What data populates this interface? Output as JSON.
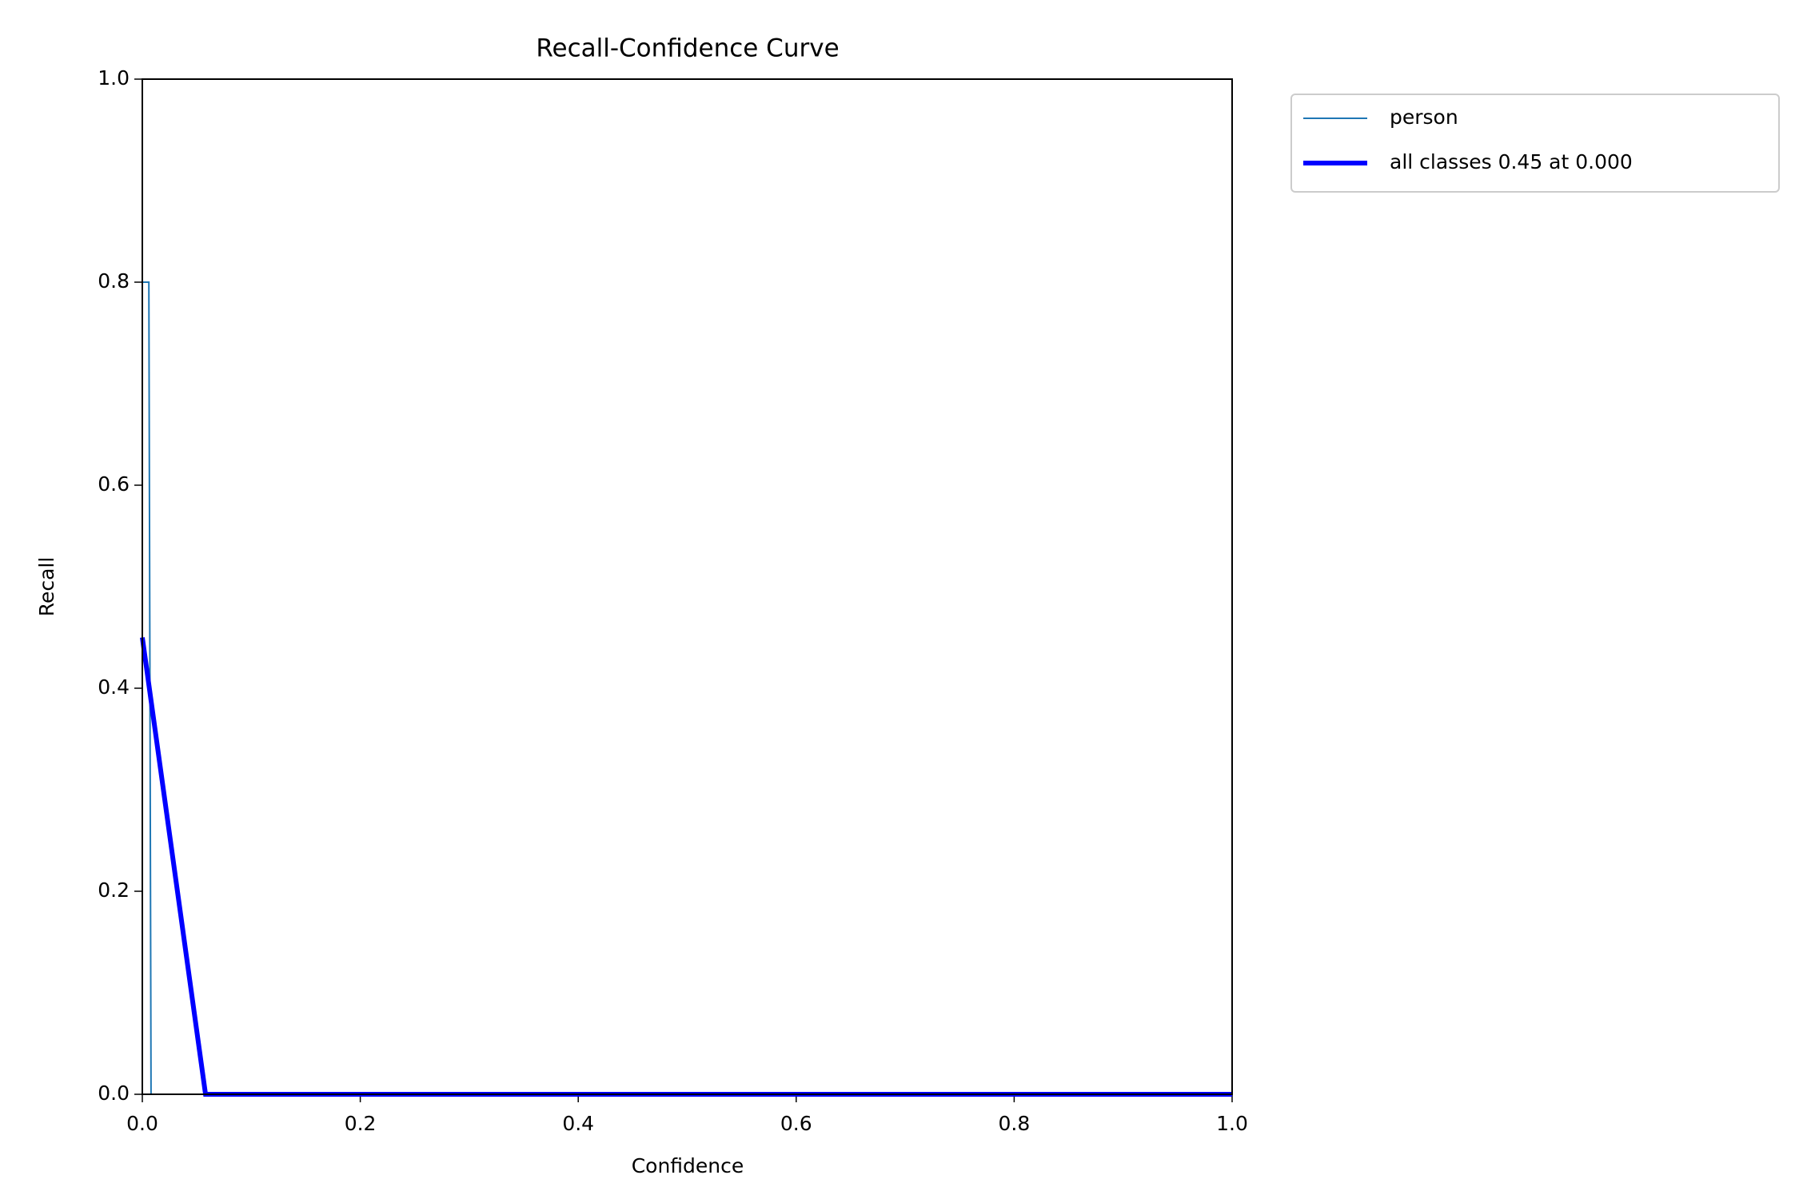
{
  "chart_data": {
    "type": "line",
    "title": "Recall-Confidence Curve",
    "x_label": "Confidence",
    "y_label": "Recall",
    "xlim": [
      0,
      1
    ],
    "ylim": [
      0,
      1
    ],
    "xticks": [
      {
        "value": 0,
        "label": "0.0"
      },
      0.2,
      0.4,
      0.6,
      0.8,
      {
        "value": 1,
        "label": "1.0"
      }
    ],
    "yticks": [
      {
        "value": 0,
        "label": "0.0"
      },
      0.2,
      0.4,
      0.6,
      0.8,
      {
        "value": 1,
        "label": "1.0"
      }
    ],
    "legend": "outside-upper-right",
    "series": [
      {
        "name": "person",
        "color": "#1f77b4",
        "x": [
          0,
          0.006,
          0.008,
          1
        ],
        "values": [
          0.8,
          0.8,
          0,
          0
        ]
      },
      {
        "name": "all classes 0.45 at 0.000",
        "color": "#0000ff",
        "x": [
          0,
          0.058,
          1
        ],
        "values": [
          0.45,
          0,
          0
        ]
      }
    ]
  }
}
